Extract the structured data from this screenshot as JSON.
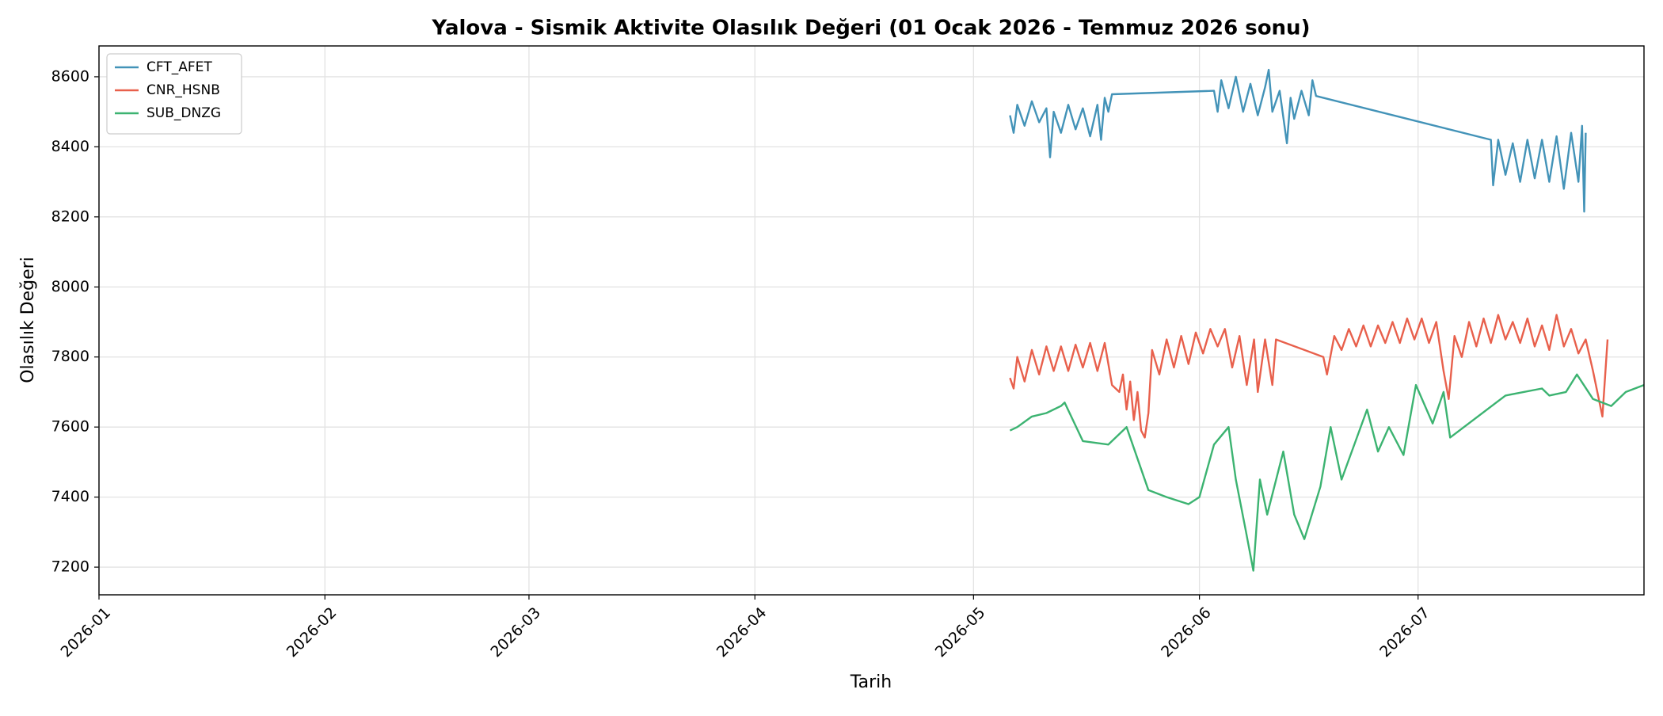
{
  "chart_data": {
    "type": "line",
    "title": "Yalova - Sismik Aktivite Olasılık Değeri (01 Ocak 2026 - Temmuz 2026 sonu)",
    "x_label": "Tarih",
    "y_label": "Olasılık Değeri",
    "xlim": [
      0,
      212
    ],
    "ylim": [
      7121,
      8688
    ],
    "xticks": [
      {
        "value": 0,
        "label": "2026-01"
      },
      {
        "value": 31,
        "label": "2026-02"
      },
      {
        "value": 59,
        "label": "2026-03"
      },
      {
        "value": 90,
        "label": "2026-04"
      },
      {
        "value": 120,
        "label": "2026-05"
      },
      {
        "value": 151,
        "label": "2026-06"
      },
      {
        "value": 181,
        "label": "2026-07"
      }
    ],
    "yticks": [
      7200,
      7400,
      7600,
      7800,
      8000,
      8200,
      8400,
      8600
    ],
    "grid": true,
    "legend": "upper left",
    "series": [
      {
        "name": "CFT_AFET",
        "color": "#4393b8",
        "x": [
          125,
          125.5,
          126,
          127,
          128,
          129,
          130,
          130.5,
          131,
          132,
          133,
          134,
          135,
          136,
          137,
          137.5,
          138,
          138.5,
          139,
          153,
          153.5,
          154,
          155,
          156,
          157,
          158,
          159,
          160,
          160.5,
          161,
          162,
          163,
          163.5,
          164,
          165,
          166,
          166.5,
          167,
          191,
          191.3,
          192,
          193,
          194,
          195,
          196,
          197,
          198,
          199,
          200,
          201,
          202,
          203,
          203.5,
          203.8,
          204
        ],
        "values": [
          8490,
          8440,
          8520,
          8460,
          8530,
          8470,
          8510,
          8370,
          8500,
          8440,
          8520,
          8450,
          8510,
          8430,
          8520,
          8420,
          8540,
          8500,
          8550,
          8560,
          8500,
          8590,
          8510,
          8600,
          8500,
          8580,
          8490,
          8570,
          8620,
          8500,
          8560,
          8410,
          8540,
          8480,
          8560,
          8490,
          8590,
          8545,
          8420,
          8290,
          8420,
          8320,
          8410,
          8300,
          8420,
          8310,
          8420,
          8300,
          8430,
          8280,
          8440,
          8300,
          8460,
          8215,
          8440
        ]
      },
      {
        "name": "CNR_HSNB",
        "color": "#e8604c",
        "x": [
          125,
          125.5,
          126,
          127,
          128,
          129,
          130,
          131,
          132,
          133,
          134,
          135,
          136,
          137,
          138,
          139,
          140,
          140.5,
          141,
          141.5,
          142,
          142.5,
          143,
          143.5,
          144,
          144.5,
          145.5,
          146.5,
          147.5,
          148.5,
          149.5,
          150.5,
          151.5,
          152.5,
          153.5,
          154.5,
          155.5,
          156.5,
          157.5,
          158.5,
          159,
          160,
          161,
          161.5,
          168,
          168.5,
          169.5,
          170.5,
          171.5,
          172.5,
          173.5,
          174.5,
          175.5,
          176.5,
          177.5,
          178.5,
          179.5,
          180.5,
          181.5,
          182.5,
          183.5,
          184.5,
          185.2,
          186,
          187,
          188,
          189,
          190,
          191,
          192,
          193,
          194,
          195,
          196,
          197,
          198,
          199,
          200,
          201,
          202,
          203,
          204,
          205,
          206.3,
          207
        ],
        "values": [
          7740,
          7710,
          7800,
          7730,
          7820,
          7750,
          7830,
          7760,
          7830,
          7760,
          7835,
          7770,
          7840,
          7760,
          7840,
          7720,
          7700,
          7750,
          7650,
          7730,
          7620,
          7700,
          7590,
          7570,
          7640,
          7820,
          7750,
          7850,
          7770,
          7860,
          7780,
          7870,
          7810,
          7880,
          7830,
          7880,
          7770,
          7860,
          7720,
          7850,
          7700,
          7850,
          7720,
          7850,
          7800,
          7750,
          7860,
          7820,
          7880,
          7830,
          7890,
          7830,
          7890,
          7840,
          7900,
          7840,
          7910,
          7850,
          7910,
          7840,
          7900,
          7760,
          7680,
          7860,
          7800,
          7900,
          7830,
          7910,
          7840,
          7920,
          7850,
          7900,
          7840,
          7910,
          7830,
          7890,
          7820,
          7920,
          7830,
          7880,
          7810,
          7850,
          7760,
          7630,
          7850
        ]
      },
      {
        "name": "SUB_DNZG",
        "color": "#3cb371",
        "x": [
          125,
          126,
          128,
          130,
          132,
          132.5,
          135,
          138.5,
          141,
          144,
          146.5,
          149.5,
          151,
          153,
          155,
          156,
          157.4,
          158.4,
          159.3,
          160.3,
          162.5,
          164,
          165.4,
          167.6,
          169,
          170.5,
          174,
          175.5,
          177,
          179,
          180.7,
          183,
          184.5,
          185.4,
          193,
          198,
          199,
          201.3,
          202.8,
          205,
          207.5,
          209.5,
          212
        ],
        "values": [
          7590,
          7600,
          7630,
          7640,
          7660,
          7670,
          7560,
          7550,
          7600,
          7420,
          7400,
          7380,
          7400,
          7550,
          7600,
          7450,
          7300,
          7190,
          7450,
          7350,
          7530,
          7350,
          7280,
          7430,
          7600,
          7450,
          7650,
          7530,
          7600,
          7520,
          7720,
          7610,
          7700,
          7570,
          7690,
          7710,
          7690,
          7700,
          7750,
          7680,
          7660,
          7700,
          7720
        ]
      }
    ]
  }
}
